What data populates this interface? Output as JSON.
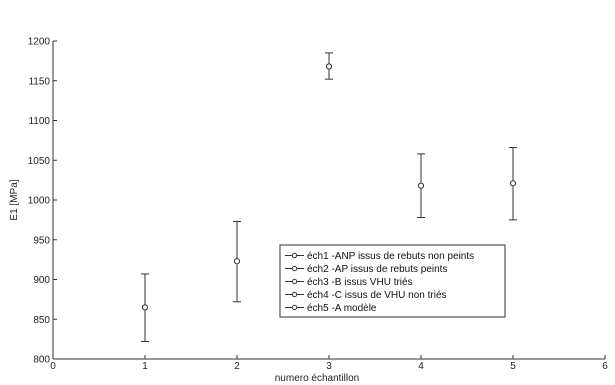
{
  "chart_data": {
    "type": "scatter",
    "title": "",
    "xlabel": "numero échantillon",
    "ylabel": "E1 [MPa]",
    "xlim": [
      0,
      6
    ],
    "ylim": [
      800,
      1200
    ],
    "x_ticks": [
      0,
      1,
      2,
      3,
      4,
      5,
      6
    ],
    "y_ticks": [
      800,
      850,
      900,
      950,
      1000,
      1050,
      1100,
      1150,
      1200
    ],
    "grid": false,
    "legend_position": "center",
    "marker": "circle-open",
    "colors": {
      "marker": "#333333",
      "errorbar": "#333333",
      "axis": "#333333"
    },
    "series": [
      {
        "name": "éch1 -ANP issus de rebuts non peints",
        "x": 1,
        "y": 865,
        "err_low": 822,
        "err_high": 907
      },
      {
        "name": "éch2 -AP issus de rebuts peints",
        "x": 2,
        "y": 923,
        "err_low": 872,
        "err_high": 973
      },
      {
        "name": "éch3 -B issus VHU triés",
        "x": 3,
        "y": 1168,
        "err_low": 1152,
        "err_high": 1185
      },
      {
        "name": "éch4 -C issus de VHU non triés",
        "x": 4,
        "y": 1018,
        "err_low": 978,
        "err_high": 1058
      },
      {
        "name": "éch5 -A modèle",
        "x": 5,
        "y": 1021,
        "err_low": 975,
        "err_high": 1066
      }
    ]
  }
}
